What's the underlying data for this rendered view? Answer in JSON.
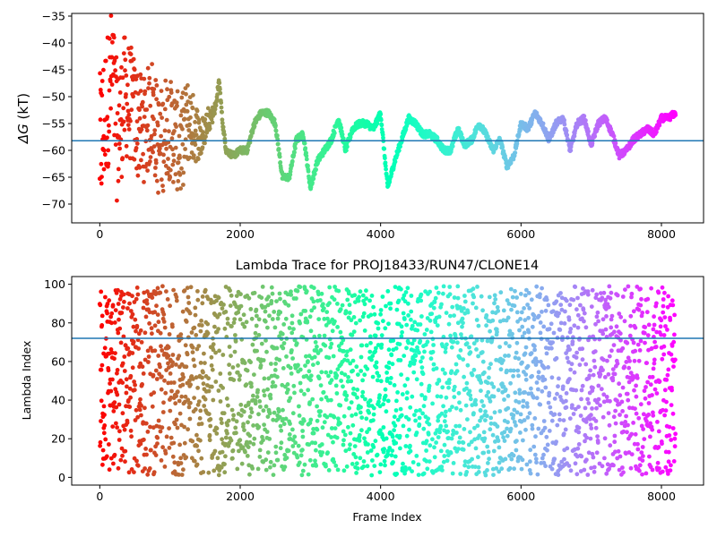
{
  "chart_data": [
    {
      "type": "scatter",
      "title": "",
      "xlabel": "",
      "ylabel": "ΔG (kT)",
      "ylabel_parts": {
        "symbol": "ΔG",
        "unit": " (kT)"
      },
      "xlim": [
        -400,
        8600
      ],
      "ylim": [
        -73.5,
        -34.5
      ],
      "x_ticks": [
        0,
        2000,
        4000,
        6000,
        8000
      ],
      "y_ticks": [
        -70,
        -65,
        -60,
        -55,
        -50,
        -45,
        -40,
        -35
      ],
      "hline": -58.2,
      "hline_color": "#1f77b4",
      "colormap": "rainbow",
      "grid": false,
      "trace_profile": {
        "x": [
          0,
          60,
          120,
          180,
          250,
          350,
          450,
          550,
          650,
          750,
          850,
          950,
          1050,
          1150,
          1250,
          1350,
          1450,
          1550,
          1650,
          1700,
          1750,
          1800,
          1900,
          2000,
          2100,
          2200,
          2300,
          2400,
          2500,
          2600,
          2700,
          2800,
          2900,
          3000,
          3100,
          3200,
          3300,
          3400,
          3500,
          3600,
          3700,
          3800,
          3900,
          4000,
          4100,
          4200,
          4300,
          4400,
          4500,
          4600,
          4700,
          4800,
          4900,
          5000,
          5100,
          5200,
          5300,
          5400,
          5500,
          5600,
          5700,
          5800,
          5900,
          6000,
          6100,
          6200,
          6300,
          6400,
          6500,
          6600,
          6700,
          6800,
          6900,
          7000,
          7100,
          7200,
          7300,
          7400,
          7500,
          7600,
          7700,
          7800,
          7900,
          8000,
          8100,
          8200
        ],
        "y": [
          -60,
          -55,
          -50,
          -45,
          -58,
          -50,
          -52,
          -55,
          -56,
          -52,
          -60,
          -55,
          -57,
          -60,
          -55,
          -56,
          -58,
          -54,
          -52,
          -47,
          -55,
          -60,
          -61,
          -60,
          -60,
          -55,
          -53,
          -53,
          -55,
          -65,
          -65,
          -58,
          -57,
          -67,
          -62,
          -60,
          -58,
          -54,
          -60,
          -56,
          -55,
          -55,
          -56,
          -53,
          -67,
          -62,
          -58,
          -54,
          -55,
          -57,
          -57,
          -58,
          -60,
          -60,
          -56,
          -59,
          -58,
          -55,
          -57,
          -60,
          -58,
          -63,
          -61,
          -55,
          -56,
          -53,
          -55,
          -58,
          -55,
          -54,
          -60,
          -55,
          -54,
          -59,
          -55,
          -54,
          -57,
          -61,
          -60,
          -58,
          -57,
          -56,
          -57,
          -54,
          -54,
          -53
        ]
      },
      "scatter_spread": {
        "x": [
          0,
          300,
          600,
          900,
          1200,
          1500,
          1700
        ],
        "y_halfwidth": [
          14,
          12,
          10,
          10,
          9,
          3,
          0
        ]
      }
    },
    {
      "type": "scatter",
      "title": "Lambda Trace for PROJ18433/RUN47/CLONE14",
      "xlabel": "Frame Index",
      "ylabel": "Lambda Index",
      "xlim": [
        -400,
        8600
      ],
      "ylim": [
        -4,
        104
      ],
      "x_ticks": [
        0,
        2000,
        4000,
        6000,
        8000
      ],
      "y_ticks": [
        0,
        20,
        40,
        60,
        80,
        100
      ],
      "hline": 72,
      "hline_color": "#1f77b4",
      "colormap": "rainbow",
      "grid": false,
      "value_range": [
        1,
        99
      ],
      "frame_count": 8200
    }
  ]
}
